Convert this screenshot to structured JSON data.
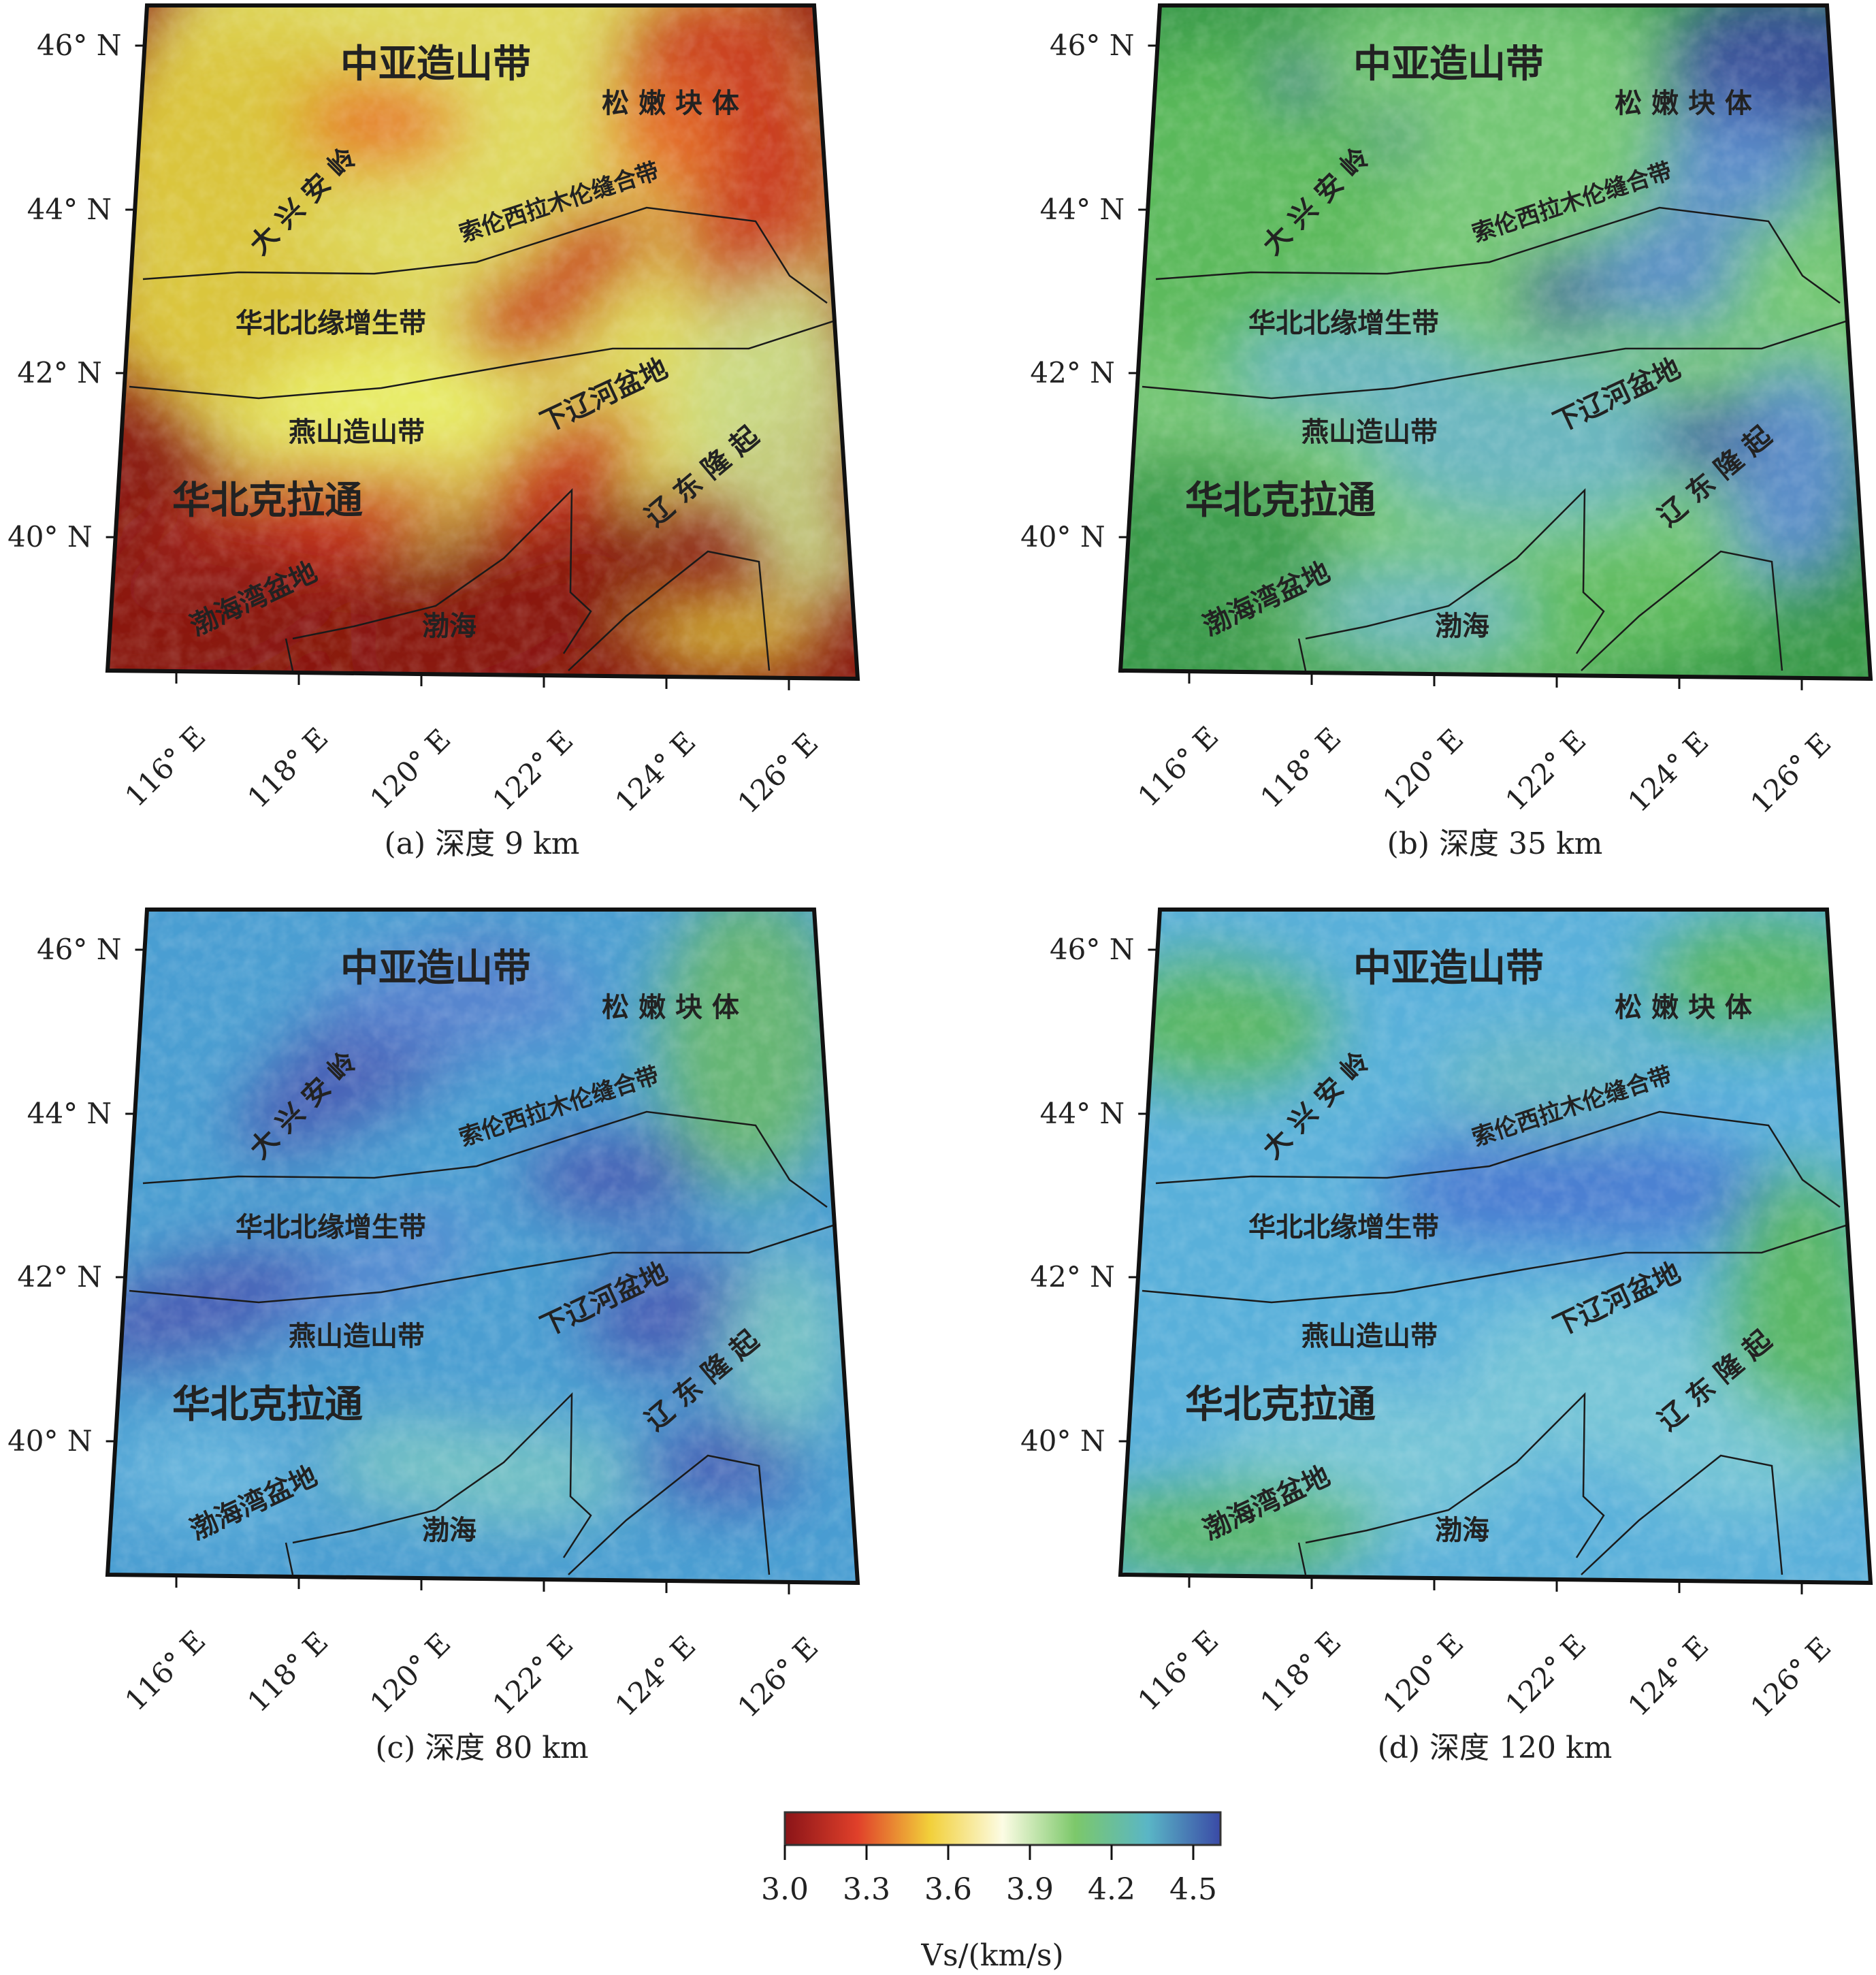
{
  "figure": {
    "panels": [
      {
        "id": "a",
        "caption": "(a) 深度 9 km",
        "palette": [
          "#8a1a12",
          "#c8321c",
          "#e5702a",
          "#d9c33a",
          "#e9ef6a",
          "#c9dc8a"
        ],
        "regions": {
          "caob": "中亚造山带",
          "songnen": "松 嫩 块 体",
          "dxal": "大 兴 安 岭",
          "suture": "索伦西拉木伦缝合带",
          "hbby": "华北北缘增生带",
          "xlh": "下辽河盆地",
          "yanshan": "燕山造山带",
          "hbklt": "华北克拉通",
          "liaodong": "辽 东 隆 起",
          "bhwpd": "渤海湾盆地",
          "bohai": "渤海"
        }
      },
      {
        "id": "b",
        "caption": "(b) 深度 35 km",
        "palette": [
          "#3a9a4a",
          "#5ab95a",
          "#7ccc7a",
          "#6ab6c6",
          "#5a8ad2",
          "#3a4aa2"
        ],
        "regions": {
          "caob": "中亚造山带",
          "songnen": "松 嫩 块 体",
          "dxal": "大 兴 安 岭",
          "suture": "索伦西拉木伦缝合带",
          "hbby": "华北北缘增生带",
          "xlh": "下辽河盆地",
          "yanshan": "燕山造山带",
          "hbklt": "华北克拉通",
          "liaodong": "辽 东 隆 起",
          "bhwpd": "渤海湾盆地",
          "bohai": "渤海"
        }
      },
      {
        "id": "c",
        "caption": "(c) 深度 80 km",
        "palette": [
          "#4a9ed2",
          "#6ab8de",
          "#5a8ad2",
          "#4a5ab2",
          "#7ac6c2",
          "#6ab86a"
        ],
        "regions": {
          "caob": "中亚造山带",
          "songnen": "松 嫩 块 体",
          "dxal": "大 兴 安 岭",
          "suture": "索伦西拉木伦缝合带",
          "hbby": "华北北缘增生带",
          "xlh": "下辽河盆地",
          "yanshan": "燕山造山带",
          "hbklt": "华北克拉通",
          "liaodong": "辽 东 隆 起",
          "bhwpd": "渤海湾盆地",
          "bohai": "渤海"
        }
      },
      {
        "id": "d",
        "caption": "(d) 深度 120 km",
        "palette": [
          "#5ab0da",
          "#7ac8d6",
          "#4a7ad0",
          "#8ad08a",
          "#6ab9c2",
          "#5ab85a"
        ],
        "regions": {
          "caob": "中亚造山带",
          "songnen": "松 嫩 块 体",
          "dxal": "大 兴 安 岭",
          "suture": "索伦西拉木伦缝合带",
          "hbby": "华北北缘增生带",
          "xlh": "下辽河盆地",
          "yanshan": "燕山造山带",
          "hbklt": "华北克拉通",
          "liaodong": "辽 东 隆 起",
          "bhwpd": "渤海湾盆地",
          "bohai": "渤海"
        }
      }
    ],
    "lat_ticks": [
      "46° N",
      "44° N",
      "42° N",
      "40° N"
    ],
    "lon_ticks": [
      "116° E",
      "118° E",
      "120° E",
      "122° E",
      "124° E",
      "126° E"
    ],
    "colorbar": {
      "label": "Vs/(km/s)",
      "ticks": [
        "3.0",
        "3.3",
        "3.6",
        "3.9",
        "4.2",
        "4.5"
      ],
      "min": 3.0,
      "max": 4.6,
      "stops": [
        "#8a1418",
        "#e0402a",
        "#f2d03a",
        "#fcfce4",
        "#7cc86a",
        "#5ab6c6",
        "#3a4aa6"
      ]
    }
  }
}
